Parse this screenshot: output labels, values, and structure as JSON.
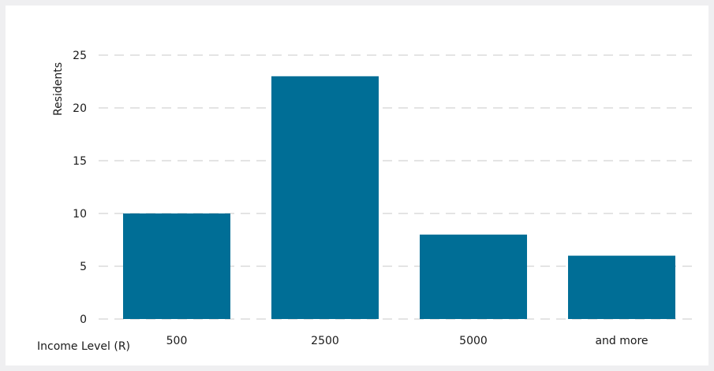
{
  "chart_data": {
    "type": "bar",
    "categories": [
      "500",
      "2500",
      "5000",
      "and more"
    ],
    "values": [
      10,
      23,
      8,
      6
    ],
    "title": "",
    "xlabel": "Income Level (R)",
    "ylabel": "Residents",
    "ylim": [
      0,
      25
    ],
    "yticks": [
      0,
      5,
      10,
      15,
      20,
      25
    ],
    "grid": true,
    "bar_color": "#006e96"
  }
}
